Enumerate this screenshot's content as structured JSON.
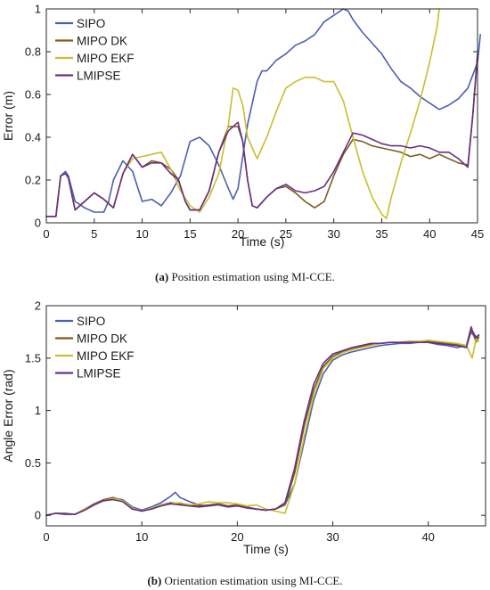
{
  "chart_data": [
    {
      "type": "line",
      "title": "",
      "xlabel": "Time (s)",
      "ylabel": "Error (m)",
      "xlim": [
        0,
        45
      ],
      "ylim": [
        0,
        1
      ],
      "xticks": [
        0,
        5,
        10,
        15,
        20,
        25,
        30,
        35,
        40,
        45
      ],
      "yticks": [
        0,
        0.2,
        0.4,
        0.6,
        0.8,
        1
      ],
      "ytick_labels": [
        "0",
        "0.2",
        "0.4",
        "0.6",
        "0.8",
        "1"
      ],
      "grid": false,
      "legend_position": "top-left",
      "caption_label": "(a)",
      "caption_text": " Position estimation using MI-CCE.",
      "series": [
        {
          "name": "SIPO",
          "color": "#4a5fb0",
          "x": [
            0,
            1,
            1.5,
            2,
            2.3,
            3,
            4,
            5,
            6,
            6.5,
            7,
            8,
            9,
            10,
            11,
            12,
            13,
            14,
            15,
            16,
            17,
            18,
            19,
            19.5,
            20,
            21,
            22,
            22.5,
            23,
            24,
            25,
            26,
            27,
            28,
            29,
            30,
            31,
            31.5,
            32,
            33,
            34,
            35,
            36,
            37,
            38,
            39,
            40,
            41,
            42,
            43,
            44,
            45,
            45.3
          ],
          "y": [
            0.03,
            0.03,
            0.22,
            0.24,
            0.22,
            0.1,
            0.07,
            0.05,
            0.05,
            0.1,
            0.2,
            0.29,
            0.24,
            0.1,
            0.11,
            0.08,
            0.14,
            0.22,
            0.38,
            0.4,
            0.36,
            0.27,
            0.16,
            0.11,
            0.16,
            0.46,
            0.66,
            0.71,
            0.71,
            0.76,
            0.79,
            0.83,
            0.85,
            0.88,
            0.94,
            0.97,
            1.0,
            0.99,
            0.95,
            0.89,
            0.84,
            0.79,
            0.72,
            0.66,
            0.63,
            0.59,
            0.56,
            0.53,
            0.55,
            0.58,
            0.63,
            0.75,
            0.88
          ]
        },
        {
          "name": "MIPO DK",
          "color": "#7a5d1e",
          "x": [
            0,
            1,
            1.5,
            2,
            2.3,
            3,
            4,
            5,
            6,
            7,
            8,
            9,
            10,
            11,
            12,
            13,
            13.8,
            14.5,
            15,
            16,
            17,
            18,
            19,
            20,
            20.5,
            21,
            21.5,
            22,
            23,
            24,
            25,
            26,
            27,
            28,
            29,
            30,
            31,
            32,
            33,
            34,
            35,
            36,
            37,
            38,
            39,
            40,
            41,
            42,
            43,
            44,
            44.5,
            45
          ],
          "y": [
            0.03,
            0.03,
            0.22,
            0.23,
            0.21,
            0.06,
            0.1,
            0.14,
            0.11,
            0.07,
            0.23,
            0.32,
            0.26,
            0.29,
            0.28,
            0.25,
            0.2,
            0.1,
            0.06,
            0.06,
            0.15,
            0.33,
            0.45,
            0.45,
            0.38,
            0.2,
            0.08,
            0.07,
            0.12,
            0.16,
            0.17,
            0.14,
            0.1,
            0.07,
            0.1,
            0.22,
            0.32,
            0.39,
            0.38,
            0.36,
            0.35,
            0.34,
            0.33,
            0.31,
            0.32,
            0.3,
            0.32,
            0.3,
            0.28,
            0.27,
            0.5,
            0.78
          ]
        },
        {
          "name": "MIPO EKF",
          "color": "#c9bf2c",
          "x": [
            0,
            1,
            1.5,
            2,
            2.3,
            3,
            4,
            5,
            6,
            7,
            8,
            9,
            10,
            11,
            12,
            13,
            14,
            15,
            16,
            17,
            18,
            19,
            19.5,
            20,
            20.5,
            21,
            22,
            23,
            24,
            25,
            26,
            27,
            28,
            29,
            30,
            31,
            32,
            33,
            34,
            35,
            35.5,
            36,
            37,
            38,
            39,
            40,
            40.8,
            41
          ],
          "y": [
            0.03,
            0.03,
            0.22,
            0.23,
            0.21,
            0.06,
            0.1,
            0.14,
            0.11,
            0.07,
            0.23,
            0.3,
            0.31,
            0.32,
            0.33,
            0.25,
            0.15,
            0.08,
            0.05,
            0.12,
            0.23,
            0.46,
            0.63,
            0.62,
            0.55,
            0.4,
            0.3,
            0.4,
            0.52,
            0.63,
            0.66,
            0.68,
            0.68,
            0.66,
            0.66,
            0.57,
            0.4,
            0.24,
            0.12,
            0.04,
            0.02,
            0.12,
            0.28,
            0.42,
            0.57,
            0.75,
            0.92,
            1.0
          ]
        },
        {
          "name": "LMIPSE",
          "color": "#6a2e86",
          "x": [
            0,
            1,
            1.5,
            2,
            2.3,
            3,
            4,
            5,
            6,
            7,
            8,
            9,
            10,
            11,
            12,
            13,
            13.8,
            14.5,
            15,
            16,
            17,
            18,
            19,
            20,
            20.5,
            21,
            21.5,
            22,
            23,
            24,
            25,
            26,
            27,
            28,
            29,
            30,
            31,
            32,
            33,
            34,
            35,
            36,
            37,
            38,
            39,
            40,
            41,
            42,
            43,
            44,
            44.5,
            45
          ],
          "y": [
            0.03,
            0.03,
            0.22,
            0.23,
            0.21,
            0.06,
            0.1,
            0.14,
            0.11,
            0.07,
            0.23,
            0.32,
            0.26,
            0.28,
            0.28,
            0.23,
            0.2,
            0.1,
            0.06,
            0.06,
            0.15,
            0.33,
            0.43,
            0.47,
            0.38,
            0.2,
            0.08,
            0.07,
            0.12,
            0.16,
            0.18,
            0.15,
            0.14,
            0.15,
            0.17,
            0.24,
            0.33,
            0.42,
            0.41,
            0.39,
            0.37,
            0.36,
            0.36,
            0.35,
            0.36,
            0.35,
            0.33,
            0.33,
            0.3,
            0.26,
            0.5,
            0.79
          ]
        }
      ]
    },
    {
      "type": "line",
      "title": "",
      "xlabel": "Time (s)",
      "ylabel": "Angle Error (rad)",
      "xlim": [
        0,
        46
      ],
      "ylim": [
        -0.1,
        2
      ],
      "xticks": [
        0,
        10,
        20,
        30,
        40
      ],
      "yticks": [
        0,
        0.5,
        1,
        1.5,
        2
      ],
      "ytick_labels": [
        "0",
        "0.5",
        "1",
        "1.5",
        "2"
      ],
      "grid": false,
      "legend_position": "top-left",
      "caption_label": "(b)",
      "caption_text": " Orientation estimation using MI-CCE.",
      "series": [
        {
          "name": "SIPO",
          "color": "#4a5fb0",
          "x": [
            0,
            1,
            2,
            3,
            4,
            5,
            6,
            7,
            8,
            9,
            10,
            11,
            12,
            13,
            13.5,
            14,
            15,
            16,
            17,
            18,
            19,
            20,
            21,
            22,
            23,
            24,
            25,
            26,
            27,
            28,
            29,
            30,
            31,
            32,
            33,
            34,
            35,
            36,
            37,
            38,
            39,
            40,
            41,
            42,
            43,
            44,
            44.5,
            45,
            45.3
          ],
          "y": [
            0,
            0.02,
            0.02,
            0.01,
            0.05,
            0.1,
            0.14,
            0.16,
            0.15,
            0.08,
            0.05,
            0.08,
            0.12,
            0.18,
            0.22,
            0.17,
            0.13,
            0.1,
            0.09,
            0.11,
            0.09,
            0.1,
            0.07,
            0.06,
            0.05,
            0.06,
            0.1,
            0.3,
            0.7,
            1.1,
            1.35,
            1.48,
            1.53,
            1.56,
            1.58,
            1.6,
            1.62,
            1.63,
            1.64,
            1.64,
            1.65,
            1.65,
            1.63,
            1.62,
            1.6,
            1.62,
            1.75,
            1.68,
            1.72
          ]
        },
        {
          "name": "MIPO DK",
          "color": "#7a5d1e",
          "x": [
            0,
            1,
            2,
            3,
            4,
            5,
            6,
            7,
            8,
            9,
            10,
            11,
            12,
            13,
            14,
            15,
            16,
            17,
            18,
            19,
            20,
            21,
            22,
            23,
            24,
            25,
            26,
            27,
            28,
            29,
            30,
            31,
            32,
            33,
            34,
            35,
            36,
            37,
            38,
            39,
            40,
            41,
            42,
            43,
            44,
            44.5,
            45,
            45.3
          ],
          "y": [
            0,
            0.02,
            0.01,
            0.01,
            0.06,
            0.11,
            0.15,
            0.17,
            0.14,
            0.07,
            0.04,
            0.07,
            0.1,
            0.12,
            0.11,
            0.1,
            0.09,
            0.1,
            0.11,
            0.09,
            0.1,
            0.08,
            0.06,
            0.05,
            0.06,
            0.1,
            0.4,
            0.85,
            1.2,
            1.42,
            1.52,
            1.56,
            1.59,
            1.61,
            1.63,
            1.64,
            1.65,
            1.65,
            1.66,
            1.66,
            1.66,
            1.65,
            1.64,
            1.63,
            1.62,
            1.8,
            1.65,
            1.7
          ]
        },
        {
          "name": "MIPO EKF",
          "color": "#c9bf2c",
          "x": [
            0,
            1,
            2,
            3,
            4,
            5,
            6,
            7,
            8,
            9,
            10,
            11,
            12,
            13,
            14,
            15,
            16,
            17,
            18,
            19,
            20,
            21,
            22,
            23,
            24,
            25,
            26,
            27,
            28,
            29,
            30,
            31,
            32,
            33,
            34,
            35,
            36,
            37,
            38,
            39,
            40,
            41,
            42,
            43,
            44,
            44.6,
            45,
            45.3
          ],
          "y": [
            0,
            0.02,
            0.01,
            0.01,
            0.06,
            0.1,
            0.14,
            0.16,
            0.14,
            0.07,
            0.04,
            0.07,
            0.1,
            0.11,
            0.12,
            0.1,
            0.11,
            0.13,
            0.12,
            0.12,
            0.11,
            0.09,
            0.1,
            0.06,
            0.04,
            0.02,
            0.3,
            0.75,
            1.15,
            1.4,
            1.5,
            1.55,
            1.58,
            1.6,
            1.62,
            1.64,
            1.65,
            1.65,
            1.66,
            1.66,
            1.67,
            1.66,
            1.65,
            1.64,
            1.62,
            1.5,
            1.68,
            1.66
          ]
        },
        {
          "name": "LMIPSE",
          "color": "#6a2e86",
          "x": [
            0,
            1,
            2,
            3,
            4,
            5,
            6,
            7,
            8,
            9,
            10,
            11,
            12,
            13,
            14,
            15,
            16,
            17,
            18,
            19,
            20,
            21,
            22,
            23,
            24,
            25,
            26,
            27,
            28,
            29,
            30,
            31,
            32,
            33,
            34,
            35,
            36,
            37,
            38,
            39,
            40,
            41,
            42,
            43,
            44,
            44.5,
            45,
            45.3
          ],
          "y": [
            0,
            0.02,
            0.01,
            0.01,
            0.05,
            0.1,
            0.14,
            0.15,
            0.13,
            0.06,
            0.04,
            0.06,
            0.09,
            0.11,
            0.1,
            0.09,
            0.08,
            0.09,
            0.1,
            0.08,
            0.09,
            0.07,
            0.06,
            0.05,
            0.06,
            0.12,
            0.45,
            0.9,
            1.25,
            1.45,
            1.54,
            1.57,
            1.6,
            1.62,
            1.64,
            1.64,
            1.65,
            1.65,
            1.65,
            1.65,
            1.65,
            1.64,
            1.63,
            1.62,
            1.6,
            1.78,
            1.7,
            1.72
          ]
        }
      ]
    }
  ]
}
